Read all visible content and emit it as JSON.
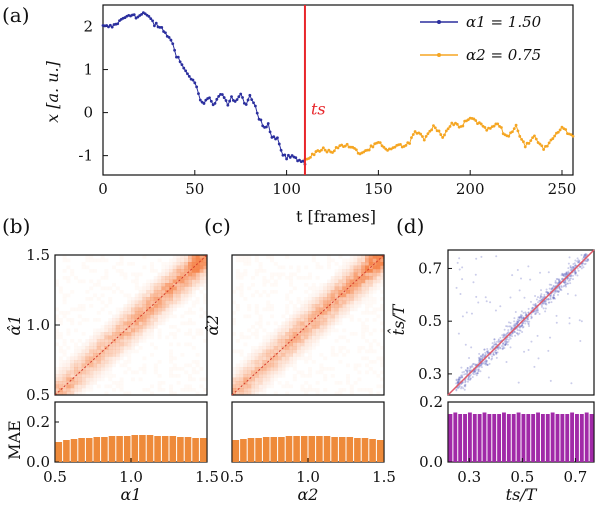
{
  "colors": {
    "blue": "#2b2f9e",
    "orange": "#f5a623",
    "red": "#e8262b",
    "orange_bar": "#ee8a3a",
    "purple": "#a12aa8",
    "heat_orange": "#f47a3c",
    "heat_blue": "#6a6fc4"
  },
  "panel_labels": [
    "(a)",
    "(b)",
    "(c)",
    "(d)"
  ],
  "chart_data": [
    {
      "id": "a",
      "type": "line",
      "xlabel": "t [frames]",
      "ylabel": "x [a. u.]",
      "xlim": [
        0,
        256
      ],
      "ylim": [
        -1.45,
        2.5
      ],
      "xticks": [
        0,
        50,
        100,
        150,
        200,
        250
      ],
      "yticks": [
        -1,
        0,
        1,
        2
      ],
      "annotation": "ts",
      "vline_x": 110,
      "series": [
        {
          "name": "α1 = 1.50",
          "color": "blue",
          "x": [
            0,
            5,
            10,
            13,
            16,
            18,
            22,
            26,
            28,
            32,
            35,
            38,
            40,
            43,
            46,
            50,
            53,
            55,
            58,
            60,
            62,
            65,
            68,
            70,
            72,
            75,
            78,
            80,
            83,
            85,
            88,
            90,
            92,
            95,
            98,
            100,
            103,
            106,
            110
          ],
          "y": [
            2.0,
            2.0,
            2.15,
            2.25,
            2.3,
            2.2,
            2.3,
            2.2,
            2.05,
            1.95,
            1.8,
            1.6,
            1.35,
            1.1,
            0.9,
            0.7,
            0.3,
            0.2,
            0.35,
            0.15,
            0.3,
            0.45,
            0.2,
            0.35,
            0.25,
            0.4,
            0.2,
            0.35,
            0.15,
            -0.15,
            -0.35,
            -0.25,
            -0.55,
            -0.6,
            -0.95,
            -1.05,
            -1.0,
            -1.1,
            -1.2
          ]
        },
        {
          "name": "α2 = 0.75",
          "color": "orange",
          "x": [
            110,
            115,
            120,
            125,
            130,
            135,
            140,
            145,
            150,
            155,
            160,
            165,
            170,
            175,
            180,
            185,
            190,
            195,
            200,
            205,
            210,
            215,
            220,
            225,
            230,
            235,
            240,
            245,
            250,
            256
          ],
          "y": [
            -1.1,
            -0.95,
            -0.85,
            -0.9,
            -0.75,
            -0.8,
            -0.95,
            -0.85,
            -0.7,
            -0.9,
            -0.75,
            -0.8,
            -0.45,
            -0.6,
            -0.3,
            -0.55,
            -0.25,
            -0.3,
            -0.1,
            -0.25,
            -0.4,
            -0.25,
            -0.55,
            -0.35,
            -0.8,
            -0.55,
            -0.85,
            -0.6,
            -0.35,
            -0.55
          ]
        }
      ]
    },
    {
      "id": "b",
      "type": "heatmap",
      "ylabel": "α̂1",
      "xlim": [
        0.5,
        1.5
      ],
      "ylim": [
        0.5,
        1.5
      ],
      "yticks": [
        0.5,
        1.0,
        1.5
      ]
    },
    {
      "id": "b_mae",
      "type": "bar",
      "xlabel": "α1",
      "ylabel": "MAE",
      "xlim": [
        0.5,
        1.5
      ],
      "ylim": [
        0,
        0.3
      ],
      "xticks": [
        0.5,
        1.0,
        1.5
      ],
      "yticks": [
        0.0,
        0.2
      ],
      "x": [
        0.525,
        0.575,
        0.625,
        0.675,
        0.725,
        0.775,
        0.825,
        0.875,
        0.925,
        0.975,
        1.025,
        1.075,
        1.125,
        1.175,
        1.225,
        1.275,
        1.325,
        1.375,
        1.425,
        1.475
      ],
      "values": [
        0.1,
        0.11,
        0.115,
        0.12,
        0.12,
        0.125,
        0.125,
        0.13,
        0.13,
        0.13,
        0.135,
        0.135,
        0.135,
        0.13,
        0.13,
        0.13,
        0.125,
        0.125,
        0.12,
        0.12
      ]
    },
    {
      "id": "c",
      "type": "heatmap",
      "ylabel": "α̂2",
      "xlim": [
        0.5,
        1.5
      ],
      "ylim": [
        0.5,
        1.5
      ]
    },
    {
      "id": "c_mae",
      "type": "bar",
      "xlabel": "α2",
      "xlim": [
        0.5,
        1.5
      ],
      "ylim": [
        0,
        0.3
      ],
      "xticks": [
        0.5,
        1.0,
        1.5
      ],
      "x": [
        0.525,
        0.575,
        0.625,
        0.675,
        0.725,
        0.775,
        0.825,
        0.875,
        0.925,
        0.975,
        1.025,
        1.075,
        1.125,
        1.175,
        1.225,
        1.275,
        1.325,
        1.375,
        1.425,
        1.475
      ],
      "values": [
        0.11,
        0.115,
        0.12,
        0.12,
        0.125,
        0.125,
        0.125,
        0.13,
        0.13,
        0.13,
        0.13,
        0.13,
        0.13,
        0.125,
        0.125,
        0.125,
        0.12,
        0.12,
        0.115,
        0.11
      ]
    },
    {
      "id": "d",
      "type": "scatter",
      "ylabel": "t̂s/T",
      "xlim": [
        0.22,
        0.77
      ],
      "ylim": [
        0.22,
        0.77
      ],
      "yticks": [
        0.3,
        0.5,
        0.7
      ]
    },
    {
      "id": "d_mae",
      "type": "bar",
      "xlabel": "ts/T",
      "xlim": [
        0.22,
        0.77
      ],
      "ylim": [
        0,
        0.2
      ],
      "xticks": [
        0.3,
        0.5,
        0.7
      ],
      "yticks": [
        0.0,
        0.2
      ],
      "values": [
        0.16,
        0.165,
        0.16,
        0.16,
        0.165,
        0.16,
        0.16,
        0.165,
        0.16,
        0.16,
        0.16,
        0.165,
        0.16,
        0.16,
        0.165,
        0.16,
        0.16,
        0.16,
        0.165,
        0.16,
        0.16,
        0.165,
        0.16,
        0.16,
        0.16,
        0.165,
        0.16,
        0.16,
        0.165,
        0.16
      ]
    }
  ]
}
